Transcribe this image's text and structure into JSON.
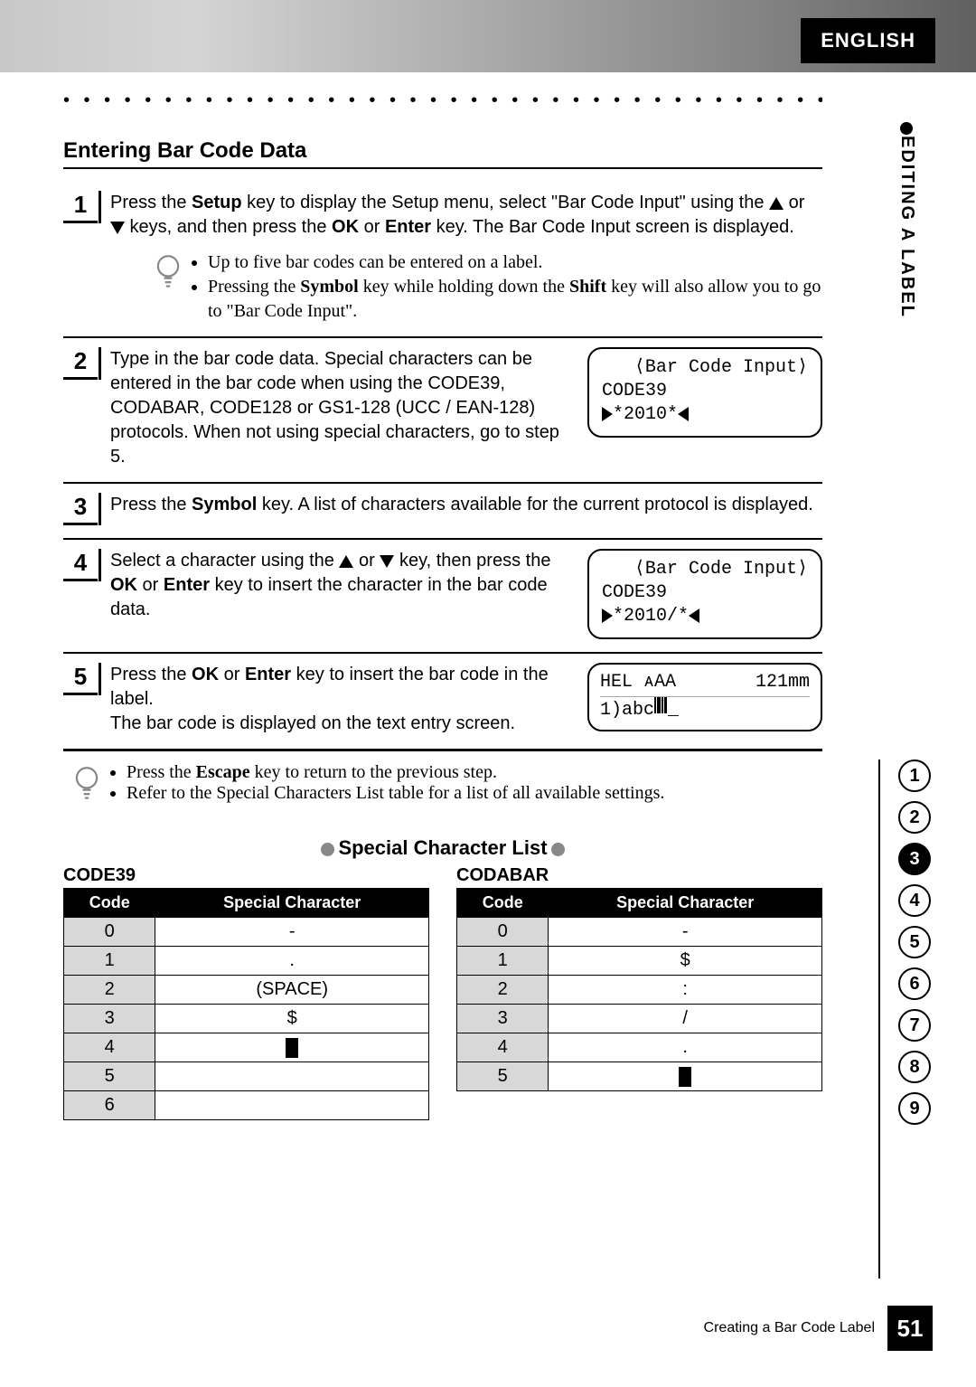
{
  "header": {
    "language": "ENGLISH",
    "side_label": "EDITING A LABEL"
  },
  "section": {
    "title": "Entering Bar Code Data"
  },
  "steps": {
    "s1": {
      "num": "1",
      "text_a": "Press the ",
      "setup": "Setup",
      "text_b": " key to display the Setup menu, select \"Bar Code Input\" using the ",
      "text_c": " or ",
      "text_d": " keys, and then press the ",
      "ok": "OK",
      "text_e": " or ",
      "enter": "Enter",
      "text_f": " key. The Bar Code Input screen is displayed."
    },
    "note1": {
      "b1": "Up to five bar codes can be entered on a label.",
      "b2a": "Pressing the ",
      "b2sym": "Symbol",
      "b2b": " key while holding down the ",
      "b2shift": "Shift",
      "b2c": " key will also allow you to go to \"Bar Code Input\"."
    },
    "s2": {
      "num": "2",
      "text": "Type in the bar code data. Special characters can be entered in the bar code when using the CODE39, CODABAR, CODE128 or GS1-128 (UCC / EAN-128) protocols. When not using special characters, go to step 5."
    },
    "lcd2": {
      "hdr": "⟨Bar Code Input⟩",
      "l1": "CODE39",
      "l2": "*2010*"
    },
    "s3": {
      "num": "3",
      "a": "Press the ",
      "sym": "Symbol",
      "b": " key. A list of characters available for the current protocol is displayed."
    },
    "s4": {
      "num": "4",
      "a": "Select a character using the ",
      "b": " or ",
      "c": " key, then press the ",
      "ok": "OK",
      "d": " or ",
      "enter": "Enter",
      "e": " key to insert the character in the bar code data."
    },
    "lcd4": {
      "hdr": "⟨Bar Code Input⟩",
      "l1": "CODE39",
      "l2": "*2010/*"
    },
    "s5": {
      "num": "5",
      "a": "Press the ",
      "ok": "OK",
      "b": " or ",
      "enter": "Enter",
      "c": " key to insert the bar code in the label.",
      "d": "The bar code is displayed on the text entry screen."
    },
    "lcd5": {
      "top_left": "HEL ᴀAA",
      "top_right": "121mm",
      "bottom": "1)abc"
    },
    "note2": {
      "b1a": "Press the ",
      "b1esc": "Escape",
      "b1b": " key to return to the previous step.",
      "b2": "Refer to the Special Characters List table for a list of all available settings."
    }
  },
  "scl": {
    "title": "Special Character List",
    "code39": {
      "caption": "CODE39",
      "cols": [
        "Code",
        "Special Character"
      ],
      "rows": [
        [
          "0",
          "-"
        ],
        [
          "1",
          "."
        ],
        [
          "2",
          "(SPACE)"
        ],
        [
          "3",
          "$"
        ],
        [
          "4",
          "■"
        ],
        [
          "5",
          ""
        ],
        [
          "6",
          ""
        ]
      ]
    },
    "codabar": {
      "caption": "CODABAR",
      "cols": [
        "Code",
        "Special Character"
      ],
      "rows": [
        [
          "0",
          "-"
        ],
        [
          "1",
          "$"
        ],
        [
          "2",
          ":"
        ],
        [
          "3",
          "/"
        ],
        [
          "4",
          "."
        ],
        [
          "5",
          "■"
        ]
      ]
    }
  },
  "pageindex": {
    "items": [
      "1",
      "2",
      "3",
      "4",
      "5",
      "6",
      "7",
      "8",
      "9"
    ],
    "active": "3"
  },
  "footer": {
    "text": "Creating a Bar Code Label",
    "page": "51"
  }
}
